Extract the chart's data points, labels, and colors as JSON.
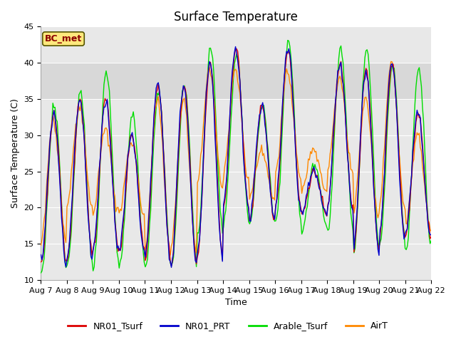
{
  "title": "Surface Temperature",
  "ylabel": "Surface Temperature (C)",
  "xlabel": "Time",
  "ylim": [
    10,
    45
  ],
  "yticks": [
    10,
    15,
    20,
    25,
    30,
    35,
    40,
    45
  ],
  "date_labels": [
    "Aug 7",
    "Aug 8",
    "Aug 9",
    "Aug 10",
    "Aug 11",
    "Aug 12",
    "Aug 13",
    "Aug 14",
    "Aug 15",
    "Aug 16",
    "Aug 17",
    "Aug 18",
    "Aug 19",
    "Aug 20",
    "Aug 21",
    "Aug 22"
  ],
  "legend_labels": [
    "NR01_Tsurf",
    "NR01_PRT",
    "Arable_Tsurf",
    "AirT"
  ],
  "line_colors": [
    "#dd0000",
    "#0000cc",
    "#00dd00",
    "#ff8800"
  ],
  "shaded_band": [
    35,
    40
  ],
  "shaded_color": "#d8d8d8",
  "plot_bg": "#e8e8e8",
  "bc_met_label": "BC_met",
  "bc_met_bg": "#ffe87c",
  "bc_met_border": "#8b0000",
  "title_fontsize": 12,
  "label_fontsize": 9,
  "tick_fontsize": 8,
  "legend_fontsize": 9
}
